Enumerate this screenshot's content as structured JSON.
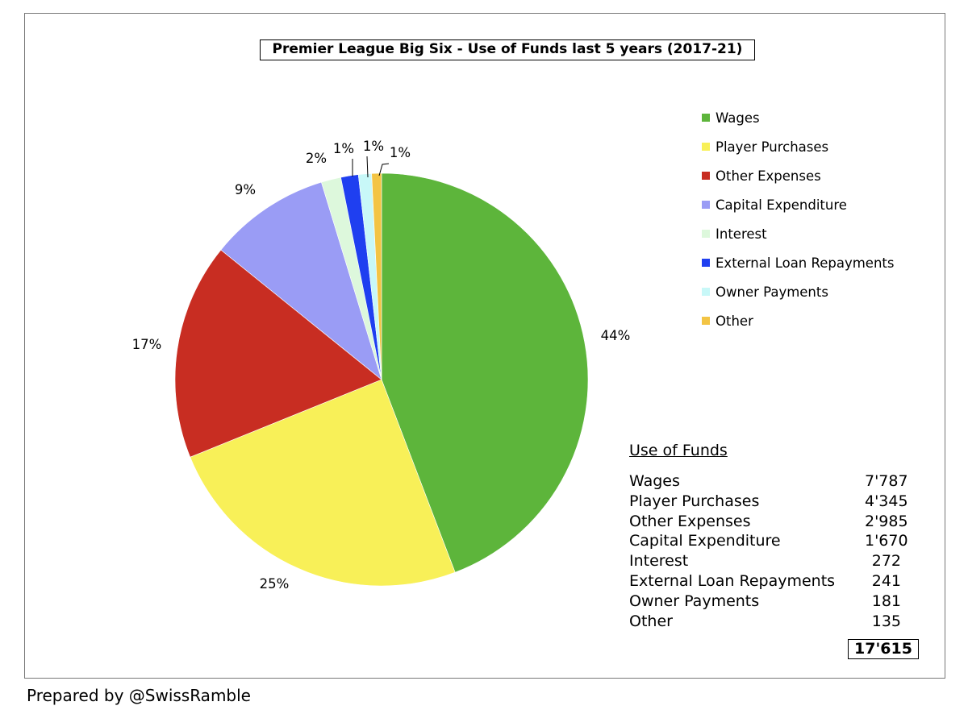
{
  "chart_data": {
    "type": "pie",
    "title": "Premier League Big Six - Use of Funds last 5 years (2017-21)",
    "slices": [
      {
        "label": "Wages",
        "value": 7787,
        "percent_label": "44%",
        "color": "#5db53b"
      },
      {
        "label": "Player Purchases",
        "value": 4345,
        "percent_label": "25%",
        "color": "#f8f058"
      },
      {
        "label": "Other Expenses",
        "value": 2985,
        "percent_label": "17%",
        "color": "#c82d22"
      },
      {
        "label": "Capital Expenditure",
        "value": 1670,
        "percent_label": "9%",
        "color": "#9a9cf5"
      },
      {
        "label": "Interest",
        "value": 272,
        "percent_label": "2%",
        "color": "#ddf8dc"
      },
      {
        "label": "External Loan Repayments",
        "value": 241,
        "percent_label": "1%",
        "color": "#1f3ff0"
      },
      {
        "label": "Owner Payments",
        "value": 181,
        "percent_label": "1%",
        "color": "#c8f8f8"
      },
      {
        "label": "Other",
        "value": 135,
        "percent_label": "1%",
        "color": "#f3c444"
      }
    ],
    "legend_placement": "right"
  },
  "table": {
    "heading": "Use of Funds",
    "rows": [
      {
        "label": "Wages",
        "value": "7'787"
      },
      {
        "label": "Player Purchases",
        "value": "4'345"
      },
      {
        "label": "Other Expenses",
        "value": "2'985"
      },
      {
        "label": "Capital Expenditure",
        "value": "1'670"
      },
      {
        "label": "Interest",
        "value": "272"
      },
      {
        "label": "External Loan Repayments",
        "value": "241"
      },
      {
        "label": "Owner Payments",
        "value": "181"
      },
      {
        "label": "Other",
        "value": "135"
      }
    ],
    "total": "17'615"
  },
  "footer": "Prepared by @SwissRamble"
}
